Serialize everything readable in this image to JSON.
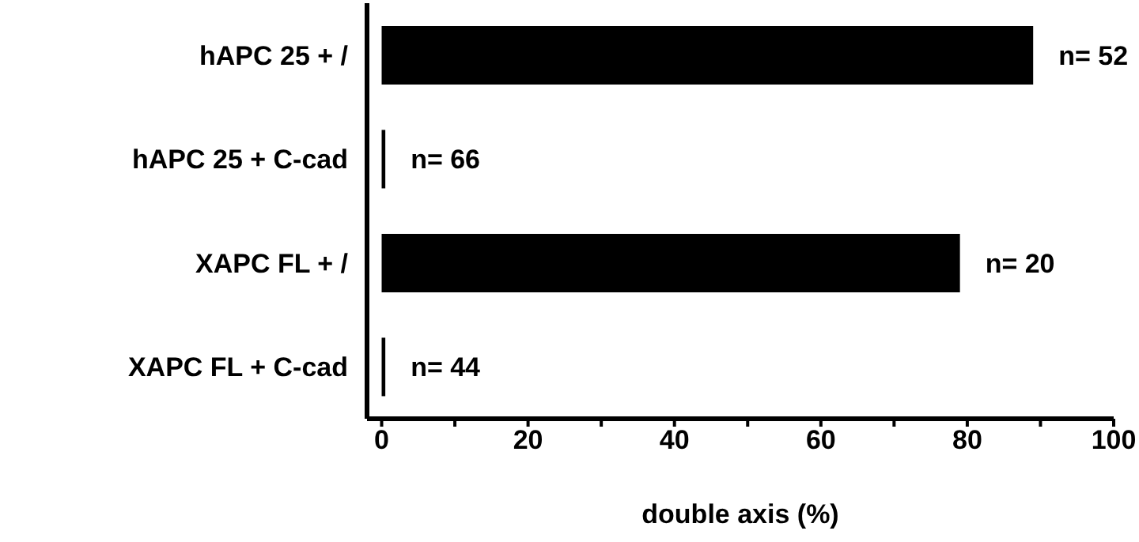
{
  "chart_data": {
    "type": "bar",
    "orientation": "horizontal",
    "xlabel": "double axis  (%)",
    "categories": [
      "hAPC 25 + /",
      "hAPC 25 + C-cad",
      "XAPC FL + /",
      "XAPC FL + C-cad"
    ],
    "values": [
      89,
      0.5,
      79,
      0.5
    ],
    "color": "#000000",
    "annotations": [
      {
        "text": "n= 52",
        "x": 89,
        "y": "hAPC 25 + /"
      },
      {
        "text": "n= 66",
        "x": 0.5,
        "y": "hAPC 25 + C-cad"
      },
      {
        "text": "n= 20",
        "x": 79,
        "y": "XAPC FL + /"
      },
      {
        "text": "n= 44",
        "x": 0.5,
        "y": "XAPC FL + C-cad"
      }
    ],
    "xlim": [
      -2,
      100
    ],
    "xticks": [
      0,
      {
        "value": 10,
        "label": null
      },
      20,
      {
        "value": 30,
        "label": null
      },
      40,
      {
        "value": 50,
        "label": null
      },
      60,
      {
        "value": 70,
        "label": null
      },
      80,
      {
        "value": 90,
        "label": null
      },
      100
    ],
    "grid": false,
    "legend": false
  }
}
